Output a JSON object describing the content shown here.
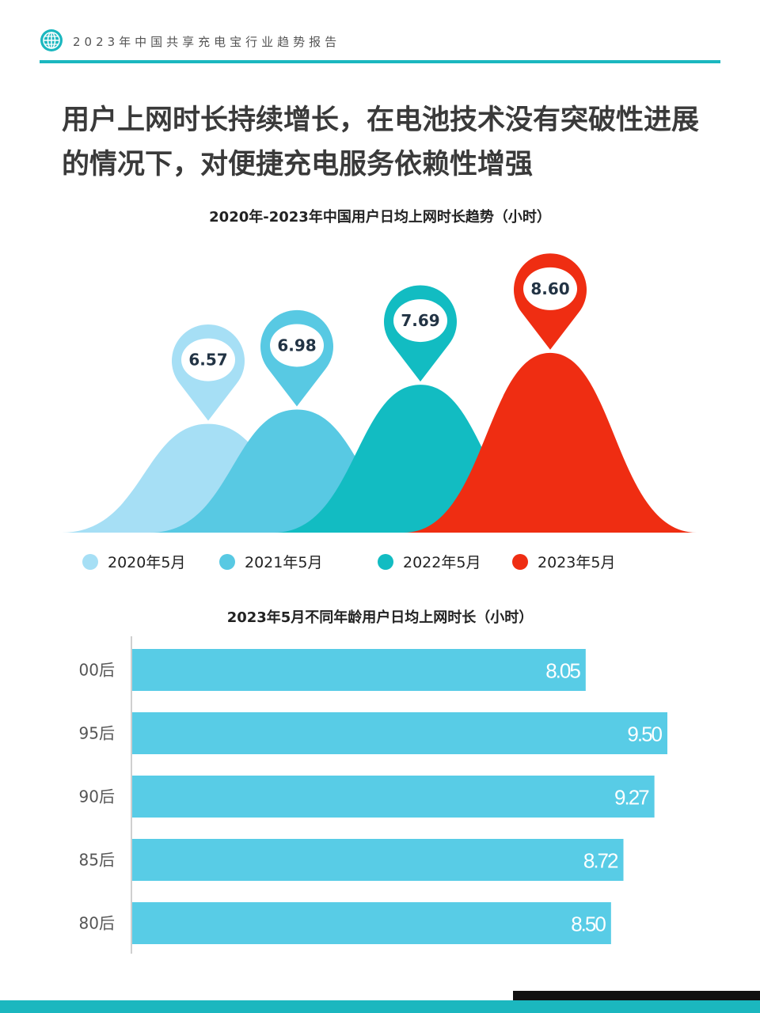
{
  "header": {
    "title": "2023年中国共享充电宝行业趋势报告",
    "accent_color": "#1bb7bf",
    "logo_icon": "globe-icon"
  },
  "headline": {
    "line1": "用户上网时长持续增长，在电池技术没有突破性进展",
    "line2": "的情况下，对便捷充电服务依赖性增强"
  },
  "chart_data": [
    {
      "type": "area",
      "title": "2020年-2023年中国用户日均上网时长趋势（小时）",
      "categories": [
        "2020年5月",
        "2021年5月",
        "2022年5月",
        "2023年5月"
      ],
      "values": [
        6.57,
        6.98,
        7.69,
        8.6
      ],
      "value_labels": [
        "6.57",
        "6.98",
        "7.69",
        "8.60"
      ],
      "colors": [
        "#a6dff5",
        "#58c9e3",
        "#12bcc2",
        "#ef2d12"
      ],
      "legend_placement": "bottom",
      "grid": false
    },
    {
      "type": "bar",
      "orientation": "horizontal",
      "title": "2023年5月不同年龄用户日均上网时长（小时）",
      "categories": [
        "00后",
        "95后",
        "90后",
        "85后",
        "80后"
      ],
      "values": [
        8.05,
        9.5,
        9.27,
        8.72,
        8.5
      ],
      "value_labels": [
        "8.05",
        "9.50",
        "9.27",
        "8.72",
        "8.50"
      ],
      "xlim": [
        0,
        9.5
      ],
      "bar_color": "#58cce6",
      "grid": false
    }
  ]
}
